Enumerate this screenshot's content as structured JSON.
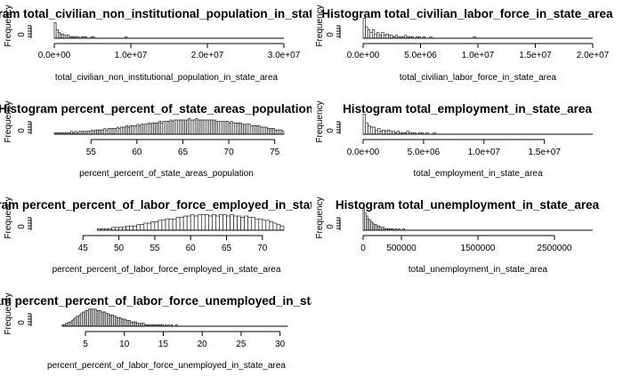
{
  "chart_data": [
    {
      "type": "bar",
      "title": "Histogram total_civilian_non_institutional_population_in_state_area",
      "xlabel": "total_civilian_non_institutional_population_in_state_area",
      "ylabel": "Frequency",
      "xlim": [
        0,
        30000000
      ],
      "xticks": [
        0,
        10000000,
        20000000,
        30000000
      ],
      "xtick_labels": [
        "0.0e+00",
        "1.0e+07",
        "2.0e+07",
        "3.0e+07"
      ],
      "yticks": [
        0
      ],
      "ytick_labels": [
        "0"
      ],
      "bin_start": 0,
      "bin_width": 250000,
      "counts": [
        11,
        6,
        4,
        3,
        3,
        2,
        2,
        2,
        1,
        1,
        1,
        1,
        1,
        0,
        1,
        1,
        1,
        0,
        0,
        1,
        1,
        0,
        0,
        0,
        0,
        0,
        0,
        0,
        0,
        0,
        0,
        0,
        0,
        0,
        0,
        0,
        0,
        1,
        0,
        0,
        0,
        0,
        0,
        0,
        0,
        0,
        0,
        0,
        0,
        0,
        0,
        0,
        0,
        0,
        0,
        0,
        0,
        0,
        0,
        0,
        0,
        0,
        0,
        0,
        0,
        0,
        0,
        0,
        0,
        0,
        0,
        0,
        0,
        0,
        0,
        0,
        0,
        0,
        0,
        0,
        0,
        0,
        0,
        0,
        0,
        0,
        0,
        0,
        0,
        0,
        0,
        0,
        0,
        0,
        0,
        0,
        0,
        0,
        0,
        0,
        0,
        0,
        0,
        0,
        0,
        0,
        0,
        0,
        0,
        0,
        0,
        0,
        0,
        0,
        0,
        0,
        0,
        0,
        0,
        0
      ]
    },
    {
      "type": "bar",
      "title": "Histogram total_civilian_labor_force_in_state_area",
      "xlabel": "total_civilian_labor_force_in_state_area",
      "ylabel": "Frequency",
      "xlim": [
        0,
        20000000
      ],
      "xticks": [
        0,
        5000000,
        10000000,
        15000000,
        20000000
      ],
      "xtick_labels": [
        "0.0e+00",
        "5.0e+06",
        "1.0e+07",
        "1.5e+07",
        "2.0e+07"
      ],
      "yticks": [
        0
      ],
      "ytick_labels": [
        "0"
      ],
      "bin_start": 0,
      "bin_width": 200000,
      "counts": [
        14,
        8,
        6,
        4,
        6,
        3,
        4,
        2,
        4,
        2,
        3,
        2,
        2,
        1,
        2,
        1,
        1,
        1,
        2,
        1,
        1,
        1,
        0,
        1,
        1,
        0,
        1,
        0,
        0,
        1,
        0,
        0,
        0,
        0,
        0,
        0,
        0,
        0,
        0,
        0,
        0,
        0,
        0,
        0,
        0,
        0,
        0,
        0,
        1,
        0,
        0,
        0,
        0,
        0,
        0,
        0,
        0,
        0,
        0,
        0,
        0,
        0,
        0,
        0,
        0,
        0,
        0,
        0,
        0,
        0,
        0,
        0,
        0,
        0,
        0,
        0,
        0,
        0,
        0,
        0,
        0,
        0,
        0,
        0,
        0,
        0,
        0,
        0,
        0,
        0,
        0,
        0,
        0,
        0,
        0,
        0,
        0,
        0,
        0,
        0
      ]
    },
    {
      "type": "bar",
      "title": "Histogram percent_percent_of_state_areas_population",
      "xlabel": "percent_percent_of_state_areas_population",
      "ylabel": "Frequency",
      "xlim": [
        51,
        76
      ],
      "xticks": [
        55,
        60,
        65,
        70,
        75
      ],
      "xtick_labels": [
        "55",
        "60",
        "65",
        "70",
        "75"
      ],
      "yticks": [
        0
      ],
      "ytick_labels": [
        "0"
      ],
      "bin_start": 51,
      "bin_width": 0.2,
      "counts": [
        1,
        1,
        1,
        1,
        1,
        1,
        1,
        1,
        1,
        2,
        1,
        2,
        1,
        2,
        2,
        2,
        2,
        2,
        2,
        2,
        3,
        2,
        3,
        3,
        3,
        3,
        3,
        4,
        3,
        4,
        4,
        4,
        4,
        4,
        5,
        4,
        5,
        5,
        5,
        6,
        5,
        6,
        6,
        6,
        6,
        7,
        6,
        7,
        7,
        7,
        7,
        8,
        7,
        8,
        8,
        8,
        8,
        9,
        8,
        9,
        9,
        9,
        9,
        10,
        9,
        10,
        10,
        10,
        10,
        10,
        10,
        10,
        10,
        11,
        10,
        10,
        10,
        11,
        10,
        10,
        10,
        10,
        10,
        10,
        10,
        10,
        10,
        10,
        9,
        9,
        9,
        9,
        9,
        9,
        9,
        8,
        9,
        8,
        8,
        8,
        8,
        8,
        7,
        7,
        7,
        7,
        7,
        6,
        6,
        6,
        6,
        6,
        5,
        5,
        5,
        5,
        4,
        4,
        4,
        4,
        3,
        3,
        3,
        3,
        2
      ]
    },
    {
      "type": "bar",
      "title": "Histogram total_employment_in_state_area",
      "xlabel": "total_employment_in_state_area",
      "ylabel": "Frequency",
      "xlim": [
        0,
        19000000
      ],
      "xticks": [
        0,
        5000000,
        10000000,
        15000000
      ],
      "xtick_labels": [
        "0.0e+00",
        "5.0e+06",
        "1.0e+07",
        "1.5e+07"
      ],
      "yticks": [
        0
      ],
      "ytick_labels": [
        "0"
      ],
      "bin_start": 0,
      "bin_width": 200000,
      "counts": [
        14,
        8,
        6,
        5,
        5,
        3,
        4,
        2,
        3,
        2,
        3,
        2,
        2,
        1,
        2,
        1,
        1,
        1,
        2,
        1,
        1,
        1,
        0,
        1,
        1,
        0,
        1,
        0,
        0,
        1,
        0,
        0,
        0,
        0,
        0,
        0,
        0,
        0,
        0,
        0,
        0,
        0,
        0,
        0,
        0,
        0,
        0,
        0,
        0,
        0,
        0,
        0,
        0,
        0,
        0,
        0,
        0,
        0,
        0,
        0,
        0,
        0,
        0,
        0,
        0,
        0,
        0,
        0,
        0,
        0,
        0,
        0,
        0,
        0,
        0,
        0,
        0,
        0,
        0,
        0,
        0,
        0,
        0,
        0,
        0,
        0,
        0,
        0,
        0,
        0,
        0,
        0,
        0,
        0,
        0
      ]
    },
    {
      "type": "bar",
      "title": "Histogram percent_percent_of_labor_force_employed_in_state_area",
      "xlabel": "percent_percent_of_labor_force_employed_in_state_area",
      "ylabel": "Frequency",
      "xlim": [
        41,
        73
      ],
      "xticks": [
        45,
        50,
        55,
        60,
        65,
        70
      ],
      "xtick_labels": [
        "45",
        "50",
        "55",
        "60",
        "65",
        "70"
      ],
      "yticks": [
        0
      ],
      "ytick_labels": [
        "0"
      ],
      "bin_start": 47,
      "bin_width": 0.5,
      "counts": [
        1,
        1,
        1,
        1,
        2,
        2,
        2,
        2,
        3,
        3,
        3,
        4,
        4,
        5,
        5,
        6,
        6,
        7,
        7,
        8,
        8,
        8,
        9,
        9,
        10,
        10,
        11,
        10,
        11,
        11,
        11,
        10,
        11,
        10,
        11,
        11,
        10,
        11,
        10,
        10,
        9,
        10,
        9,
        9,
        8,
        8,
        7,
        7,
        6,
        5,
        4,
        3
      ]
    },
    {
      "type": "bar",
      "title": "Histogram total_unemployment_in_state_area",
      "xlabel": "total_unemployment_in_state_area",
      "ylabel": "Frequency",
      "xlim": [
        0,
        3000000
      ],
      "xticks": [
        0,
        500000,
        1500000,
        2500000
      ],
      "xtick_labels": [
        "0",
        "500000",
        "1500000",
        "2500000"
      ],
      "yticks": [
        0
      ],
      "ytick_labels": [
        "0"
      ],
      "bin_start": 0,
      "bin_width": 20000,
      "counts": [
        15,
        12,
        10,
        8,
        7,
        6,
        5,
        4,
        4,
        3,
        3,
        2,
        2,
        2,
        1,
        1,
        1,
        1,
        1,
        1,
        0,
        1,
        0,
        1,
        0,
        0,
        1,
        0,
        0,
        0,
        0,
        0,
        0,
        0,
        0,
        0,
        0,
        0,
        0,
        0,
        0,
        0,
        0,
        0,
        0,
        0,
        0,
        0,
        0,
        0,
        0,
        0,
        0,
        0,
        0,
        0,
        0,
        0,
        0,
        0,
        0,
        0,
        0,
        0,
        0,
        0,
        0,
        0,
        0,
        0,
        0,
        0,
        0,
        0,
        0,
        0,
        0,
        0,
        0,
        0,
        0,
        0,
        0,
        0,
        0,
        0,
        0,
        0,
        0,
        0,
        0,
        0,
        0,
        0,
        0,
        0,
        0,
        0,
        0,
        0,
        0,
        0,
        0,
        0,
        0,
        0,
        0,
        0,
        0,
        0,
        0,
        0,
        0,
        0,
        0,
        0,
        0,
        0,
        0,
        0,
        0,
        0,
        0,
        0,
        0,
        0,
        0,
        0,
        0,
        0,
        0,
        0,
        0,
        0,
        0,
        0,
        0,
        0,
        0,
        0,
        0,
        0,
        0,
        0,
        0,
        0,
        0,
        0,
        0,
        0
      ]
    },
    {
      "type": "bar",
      "title": "Histogram percent_percent_of_labor_force_unemployed_in_state_area",
      "xlabel": "percent_percent_of_labor_force_unemployed_in_state_area",
      "ylabel": "Frequency",
      "xlim": [
        1,
        30.5
      ],
      "xticks": [
        5,
        10,
        15,
        20,
        25,
        30
      ],
      "xtick_labels": [
        "5",
        "10",
        "15",
        "20",
        "25",
        "30"
      ],
      "yticks": [
        0
      ],
      "ytick_labels": [
        "0"
      ],
      "bin_start": 2,
      "bin_width": 0.2,
      "counts": [
        1,
        1,
        2,
        2,
        3,
        3,
        4,
        5,
        6,
        7,
        7,
        8,
        9,
        10,
        10,
        11,
        11,
        12,
        12,
        12,
        12,
        12,
        11,
        11,
        11,
        10,
        10,
        10,
        9,
        9,
        8,
        8,
        8,
        7,
        7,
        6,
        6,
        6,
        5,
        5,
        5,
        4,
        4,
        4,
        3,
        3,
        3,
        3,
        2,
        2,
        2,
        2,
        2,
        1,
        1,
        1,
        1,
        1,
        1,
        1,
        1,
        1,
        1,
        1,
        1,
        0,
        1,
        0,
        1,
        0,
        1,
        0,
        0,
        1,
        0,
        0,
        0,
        0,
        0,
        0,
        0,
        0,
        0,
        0,
        0,
        0,
        0,
        0,
        0,
        0,
        0,
        0,
        0,
        0,
        0,
        0,
        0,
        0,
        0,
        0,
        0,
        0,
        0,
        0,
        0,
        0,
        0,
        0,
        0,
        0,
        0,
        0,
        0,
        0,
        0,
        0,
        0,
        0,
        0,
        0,
        0,
        0,
        0,
        0,
        0,
        0,
        0,
        0,
        0,
        0,
        0,
        0,
        0,
        0,
        0,
        0,
        0,
        0,
        0,
        0,
        0,
        0,
        0,
        0,
        0
      ]
    }
  ]
}
